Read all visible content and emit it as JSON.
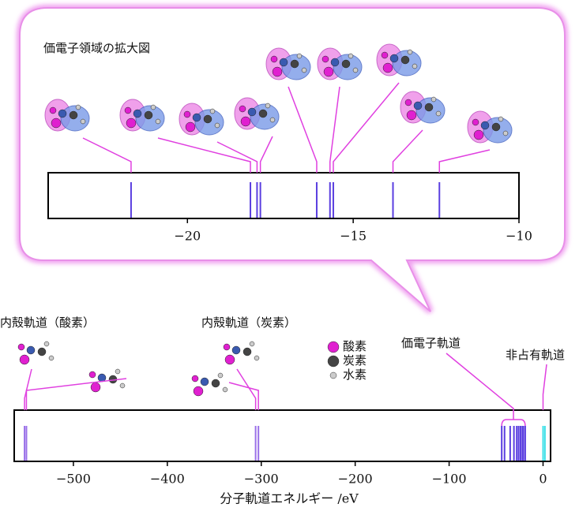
{
  "chart_data": [
    {
      "type": "spectrum",
      "title": "価電子領域の拡大図",
      "xlim": [
        -24.2,
        -10
      ],
      "xticks": [
        {
          "value": -20,
          "label": "−20"
        },
        {
          "value": -15,
          "label": "−15"
        },
        {
          "value": -10,
          "label": "−10"
        }
      ],
      "series": [
        {
          "color": "#5a3ee0",
          "values": [
            -21.7,
            -18.1,
            -17.9,
            -17.8,
            -16.1,
            -15.7,
            -15.6,
            -13.8,
            -12.4
          ]
        }
      ]
    },
    {
      "type": "spectrum",
      "xlabel": "分子軌道エネルギー /eV",
      "xlim": [
        -563,
        8
      ],
      "xticks": [
        {
          "value": -500,
          "label": "−500"
        },
        {
          "value": -400,
          "label": "−400"
        },
        {
          "value": -300,
          "label": "−300"
        },
        {
          "value": -200,
          "label": "−200"
        },
        {
          "value": -100,
          "label": "−100"
        },
        0
      ],
      "annotations": [
        "内殻軌道（酸素）",
        "内殻軌道（炭素）",
        "価電子軌道",
        "非占有軌道"
      ],
      "legend": [
        {
          "name": "酸素",
          "color": "#e020d0"
        },
        {
          "name": "炭素",
          "color": "#444444"
        },
        {
          "name": "水素",
          "color": "#cccccc"
        }
      ],
      "series": [
        {
          "color": "#9a70e8",
          "values": [
            -552,
            -550
          ]
        },
        {
          "color": "#9a70e8",
          "values": [
            -306,
            -303
          ]
        },
        {
          "color": "#5a3ee0",
          "values": [
            -44,
            -41,
            -35,
            -31,
            -28,
            -26,
            -24,
            -22,
            -21,
            -19
          ]
        },
        {
          "color": "#40e0e8",
          "values": [
            0,
            2
          ]
        }
      ]
    }
  ]
}
